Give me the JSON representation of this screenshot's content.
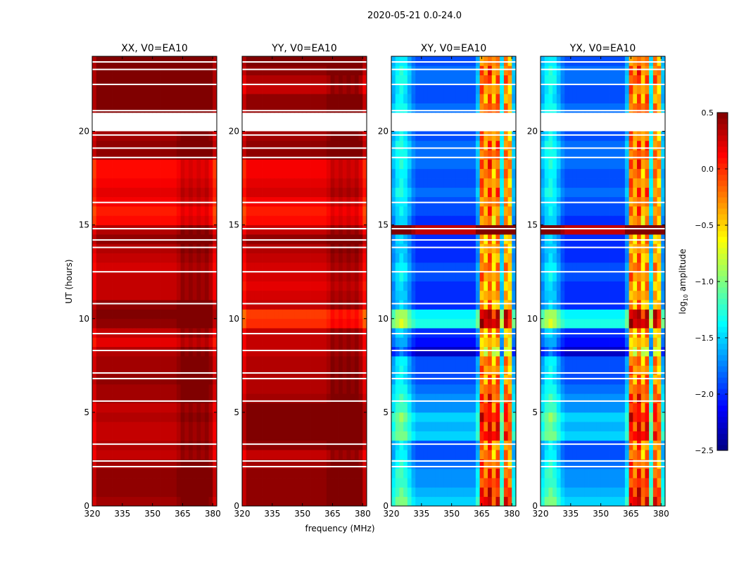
{
  "chart_data": {
    "type": "heatmap",
    "title": "2020-05-21 0.0-24.0",
    "xlabel": "frequency (MHz)",
    "ylabel": "UT (hours)",
    "xlim": [
      320,
      382
    ],
    "ylim": [
      0,
      24
    ],
    "xticks": [
      320,
      335,
      350,
      365,
      380
    ],
    "yticks": [
      0,
      5,
      10,
      15,
      20
    ],
    "time_bin_hours": 0.5,
    "freq_bin_mhz": 2,
    "flagged_hours": [
      2.1,
      2.4,
      3.3,
      5.6,
      6.8,
      7.1,
      8.3,
      9.2,
      10.8,
      12.5,
      13.8,
      14.2,
      14.8,
      16.2,
      18.6,
      19.1,
      19.8,
      21.1,
      22.5,
      23.3,
      23.7
    ],
    "colorbar": {
      "label_main": "log",
      "label_sub": "10",
      "label_rest": " amplitude",
      "range": [
        -2.5,
        0.5
      ],
      "ticks": [
        "0.5",
        "0.0",
        "−0.5",
        "−1.0",
        "−1.5",
        "−2.0",
        "−2.5"
      ],
      "tick_values": [
        0.5,
        0.0,
        -0.5,
        -1.0,
        -1.5,
        -2.0,
        -2.5
      ],
      "colormap": "jet"
    },
    "panels": [
      {
        "title": "XX, V0=EA10",
        "profile": "parallel",
        "rows": [
          0.4,
          0.45,
          0.45,
          0.45,
          0.4,
          0.3,
          0.35,
          0.3,
          0.3,
          0.35,
          0.3,
          0.4,
          0.4,
          0.45,
          0.4,
          0.4,
          0.35,
          0.2,
          0.3,
          0.45,
          0.5,
          0.45,
          0.3,
          0.3,
          0.3,
          0.25,
          0.3,
          0.35,
          0.45,
          0.35,
          0.1,
          0.05,
          0.15,
          0.2,
          0.15,
          0.1,
          0.1,
          0.45,
          0.45,
          0.4,
          null,
          null,
          0.5,
          0.5,
          0.5,
          0.5,
          0.5,
          0.5
        ]
      },
      {
        "title": "YY, V0=EA10",
        "profile": "parallel",
        "rows": [
          0.45,
          0.45,
          0.45,
          0.45,
          0.4,
          0.3,
          0.45,
          0.5,
          0.5,
          0.5,
          0.5,
          0.4,
          0.35,
          0.35,
          0.35,
          0.35,
          0.3,
          0.3,
          0.3,
          0.0,
          -0.05,
          0.3,
          0.25,
          0.2,
          0.25,
          0.25,
          0.3,
          0.35,
          0.45,
          0.3,
          0.1,
          0.05,
          0.15,
          0.25,
          0.2,
          0.15,
          0.15,
          0.45,
          0.45,
          0.4,
          null,
          null,
          0.45,
          0.45,
          0.3,
          0.35,
          0.45,
          0.5
        ]
      },
      {
        "title": "XY, V0=EA10",
        "profile": "cross",
        "rows": [
          -1.5,
          -1.6,
          -1.7,
          -1.7,
          -1.8,
          -1.9,
          -1.9,
          -1.5,
          -1.6,
          -1.5,
          -1.7,
          -1.7,
          -1.8,
          -1.9,
          -1.9,
          -1.9,
          -2.3,
          -2.1,
          -2.0,
          -1.3,
          -1.4,
          -2.0,
          -2.0,
          -2.0,
          -1.9,
          -1.9,
          -2.0,
          -2.0,
          -2.0,
          0.3,
          -2.0,
          -1.9,
          -1.9,
          -1.8,
          -1.9,
          -1.9,
          -1.8,
          -1.8,
          -1.8,
          -1.9,
          null,
          null,
          -1.8,
          -1.9,
          -1.9,
          -1.8,
          -1.8,
          -1.9
        ]
      },
      {
        "title": "YX, V0=EA10",
        "profile": "cross",
        "rows": [
          -1.5,
          -1.6,
          -1.7,
          -1.7,
          -1.8,
          -1.9,
          -1.9,
          -1.5,
          -1.6,
          -1.5,
          -1.7,
          -1.7,
          -1.8,
          -1.9,
          -1.9,
          -1.9,
          -2.3,
          -2.1,
          -2.0,
          -1.3,
          -1.4,
          -2.0,
          -2.0,
          -2.0,
          -1.9,
          -1.9,
          -2.0,
          -2.0,
          -2.0,
          0.3,
          -2.0,
          -1.9,
          -1.9,
          -1.8,
          -1.9,
          -1.9,
          -1.8,
          -1.8,
          -1.8,
          -1.9,
          null,
          null,
          -1.8,
          -1.9,
          -1.9,
          -1.8,
          -1.8,
          -1.9
        ]
      }
    ],
    "freq_profiles": {
      "parallel": [
        -0.15,
        0,
        0,
        0,
        0,
        0,
        0,
        0,
        0,
        0,
        0,
        0,
        0,
        0,
        0,
        0,
        0,
        0,
        0,
        0,
        0,
        0.05,
        0.15,
        0.1,
        0.15,
        0.1,
        0.15,
        0.1,
        0.15,
        0.05,
        -0.15
      ],
      "cross": [
        0.3,
        0.5,
        0.6,
        0.5,
        0.3,
        0.1,
        0,
        0,
        0,
        0,
        0,
        0,
        0,
        0,
        0,
        0,
        0,
        0,
        0,
        0,
        0,
        0.3,
        1.9,
        1.7,
        2.0,
        1.6,
        1.9,
        0.5,
        1.8,
        1.6,
        0.3
      ]
    }
  }
}
